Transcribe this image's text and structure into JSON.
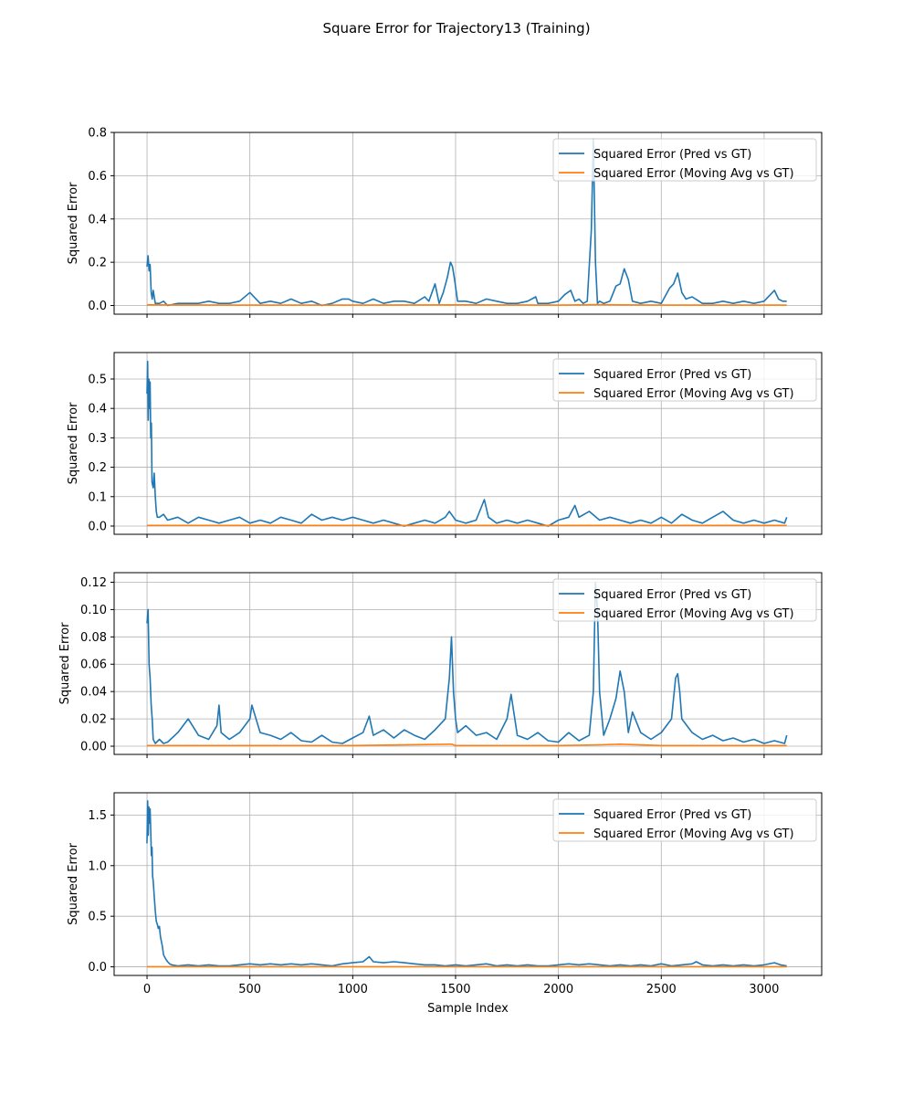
{
  "figure": {
    "title": "Square Error for Trajectory13 (Training)"
  },
  "colors": {
    "series_pred": "#1f77b4",
    "series_movavg": "#ff7f0e",
    "grid": "#b0b0b0",
    "axis": "#000000",
    "background": "#ffffff"
  },
  "chart_data": [
    {
      "type": "line",
      "title": "",
      "xlabel": "",
      "ylabel": "Squared Error",
      "xlim": [
        -160,
        3280
      ],
      "ylim": [
        -0.04,
        0.8
      ],
      "xticks": [
        0,
        500,
        1000,
        1500,
        2000,
        2500,
        3000
      ],
      "xtick_labels_visible": false,
      "yticks": [
        0.0,
        0.2,
        0.4,
        0.6,
        0.8
      ],
      "ytick_labels": [
        "0.0",
        "0.2",
        "0.4",
        "0.6",
        "0.8"
      ],
      "grid": true,
      "legend": "top-right",
      "series": [
        {
          "name": "Squared Error (Pred vs GT)",
          "x": [
            0,
            5,
            10,
            15,
            20,
            25,
            30,
            40,
            60,
            80,
            100,
            150,
            200,
            250,
            300,
            350,
            400,
            450,
            500,
            550,
            600,
            650,
            700,
            750,
            800,
            850,
            900,
            950,
            980,
            1000,
            1050,
            1100,
            1150,
            1200,
            1250,
            1300,
            1350,
            1370,
            1400,
            1420,
            1440,
            1460,
            1475,
            1485,
            1495,
            1510,
            1550,
            1600,
            1650,
            1700,
            1750,
            1800,
            1850,
            1890,
            1900,
            1950,
            2000,
            2030,
            2060,
            2080,
            2100,
            2120,
            2140,
            2160,
            2170,
            2180,
            2190,
            2200,
            2220,
            2250,
            2280,
            2300,
            2320,
            2340,
            2360,
            2400,
            2450,
            2500,
            2540,
            2560,
            2580,
            2600,
            2620,
            2650,
            2700,
            2750,
            2800,
            2850,
            2900,
            2950,
            3000,
            3050,
            3070,
            3090,
            3110
          ],
          "y": [
            0.18,
            0.23,
            0.16,
            0.19,
            0.06,
            0.03,
            0.07,
            0.01,
            0.01,
            0.02,
            0.0,
            0.01,
            0.01,
            0.01,
            0.02,
            0.01,
            0.01,
            0.02,
            0.06,
            0.01,
            0.02,
            0.01,
            0.03,
            0.01,
            0.02,
            0.0,
            0.01,
            0.03,
            0.03,
            0.02,
            0.01,
            0.03,
            0.01,
            0.02,
            0.02,
            0.01,
            0.04,
            0.02,
            0.1,
            0.01,
            0.06,
            0.13,
            0.2,
            0.18,
            0.12,
            0.02,
            0.02,
            0.01,
            0.03,
            0.02,
            0.01,
            0.01,
            0.02,
            0.04,
            0.01,
            0.01,
            0.02,
            0.05,
            0.07,
            0.02,
            0.03,
            0.01,
            0.02,
            0.35,
            0.77,
            0.2,
            0.01,
            0.02,
            0.01,
            0.02,
            0.09,
            0.1,
            0.17,
            0.12,
            0.02,
            0.01,
            0.02,
            0.01,
            0.08,
            0.1,
            0.15,
            0.06,
            0.03,
            0.04,
            0.01,
            0.01,
            0.02,
            0.01,
            0.02,
            0.01,
            0.02,
            0.07,
            0.03,
            0.02,
            0.02
          ]
        },
        {
          "name": "Squared Error (Moving Avg vs GT)",
          "x": [
            0,
            500,
            1000,
            1500,
            2000,
            2200,
            2300,
            2500,
            3000,
            3110
          ],
          "y": [
            0.003,
            0.002,
            0.002,
            0.003,
            0.002,
            0.004,
            0.003,
            0.002,
            0.002,
            0.002
          ]
        }
      ]
    },
    {
      "type": "line",
      "title": "",
      "xlabel": "",
      "ylabel": "Squared Error",
      "xlim": [
        -160,
        3280
      ],
      "ylim": [
        -0.028,
        0.59
      ],
      "xticks": [
        0,
        500,
        1000,
        1500,
        2000,
        2500,
        3000
      ],
      "xtick_labels_visible": false,
      "yticks": [
        0.0,
        0.1,
        0.2,
        0.3,
        0.4,
        0.5
      ],
      "ytick_labels": [
        "0.0",
        "0.1",
        "0.2",
        "0.3",
        "0.4",
        "0.5"
      ],
      "grid": true,
      "legend": "top-right",
      "series": [
        {
          "name": "Squared Error (Pred vs GT)",
          "x": [
            0,
            3,
            6,
            9,
            12,
            15,
            18,
            21,
            24,
            30,
            35,
            40,
            45,
            50,
            60,
            80,
            100,
            150,
            200,
            250,
            300,
            350,
            400,
            450,
            500,
            550,
            600,
            650,
            700,
            750,
            800,
            850,
            900,
            950,
            1000,
            1050,
            1100,
            1150,
            1200,
            1250,
            1300,
            1350,
            1400,
            1450,
            1470,
            1500,
            1550,
            1600,
            1640,
            1660,
            1700,
            1750,
            1800,
            1850,
            1900,
            1950,
            2000,
            2050,
            2080,
            2100,
            2150,
            2200,
            2250,
            2300,
            2350,
            2400,
            2450,
            2500,
            2550,
            2600,
            2650,
            2700,
            2750,
            2800,
            2850,
            2900,
            2950,
            3000,
            3050,
            3100,
            3110
          ],
          "y": [
            0.45,
            0.56,
            0.36,
            0.5,
            0.4,
            0.49,
            0.3,
            0.35,
            0.15,
            0.13,
            0.18,
            0.1,
            0.05,
            0.03,
            0.03,
            0.04,
            0.02,
            0.03,
            0.01,
            0.03,
            0.02,
            0.01,
            0.02,
            0.03,
            0.01,
            0.02,
            0.01,
            0.03,
            0.02,
            0.01,
            0.04,
            0.02,
            0.03,
            0.02,
            0.03,
            0.02,
            0.01,
            0.02,
            0.01,
            0.0,
            0.01,
            0.02,
            0.01,
            0.03,
            0.05,
            0.02,
            0.01,
            0.02,
            0.09,
            0.03,
            0.01,
            0.02,
            0.01,
            0.02,
            0.01,
            0.0,
            0.02,
            0.03,
            0.07,
            0.03,
            0.05,
            0.02,
            0.03,
            0.02,
            0.01,
            0.02,
            0.01,
            0.03,
            0.01,
            0.04,
            0.02,
            0.01,
            0.03,
            0.05,
            0.02,
            0.01,
            0.02,
            0.01,
            0.02,
            0.01,
            0.03
          ]
        },
        {
          "name": "Squared Error (Moving Avg vs GT)",
          "x": [
            0,
            500,
            1000,
            1500,
            2000,
            2500,
            3000,
            3110
          ],
          "y": [
            0.002,
            0.002,
            0.002,
            0.002,
            0.002,
            0.002,
            0.002,
            0.002
          ]
        }
      ]
    },
    {
      "type": "line",
      "title": "",
      "xlabel": "",
      "ylabel": "Squared Error",
      "xlim": [
        -160,
        3280
      ],
      "ylim": [
        -0.006,
        0.127
      ],
      "xticks": [
        0,
        500,
        1000,
        1500,
        2000,
        2500,
        3000
      ],
      "xtick_labels_visible": false,
      "yticks": [
        0.0,
        0.02,
        0.04,
        0.06,
        0.08,
        0.1,
        0.12
      ],
      "ytick_labels": [
        "0.00",
        "0.02",
        "0.04",
        "0.06",
        "0.08",
        "0.10",
        "0.12"
      ],
      "grid": true,
      "legend": "top-right",
      "series": [
        {
          "name": "Squared Error (Pred vs GT)",
          "x": [
            0,
            5,
            10,
            15,
            20,
            25,
            30,
            40,
            60,
            80,
            100,
            150,
            200,
            250,
            300,
            340,
            350,
            360,
            400,
            450,
            500,
            510,
            550,
            600,
            650,
            700,
            750,
            800,
            850,
            900,
            950,
            1000,
            1050,
            1080,
            1100,
            1150,
            1200,
            1250,
            1300,
            1350,
            1400,
            1450,
            1470,
            1480,
            1490,
            1500,
            1510,
            1550,
            1600,
            1650,
            1700,
            1750,
            1770,
            1800,
            1850,
            1900,
            1950,
            2000,
            2050,
            2100,
            2150,
            2170,
            2180,
            2190,
            2200,
            2220,
            2250,
            2280,
            2300,
            2320,
            2340,
            2360,
            2400,
            2450,
            2500,
            2550,
            2570,
            2580,
            2590,
            2600,
            2650,
            2700,
            2750,
            2800,
            2850,
            2900,
            2950,
            3000,
            3050,
            3100,
            3110
          ],
          "y": [
            0.09,
            0.1,
            0.06,
            0.05,
            0.03,
            0.02,
            0.005,
            0.002,
            0.005,
            0.002,
            0.003,
            0.01,
            0.02,
            0.008,
            0.005,
            0.015,
            0.03,
            0.01,
            0.005,
            0.01,
            0.02,
            0.03,
            0.01,
            0.008,
            0.005,
            0.01,
            0.004,
            0.003,
            0.008,
            0.003,
            0.002,
            0.006,
            0.01,
            0.022,
            0.008,
            0.012,
            0.006,
            0.012,
            0.008,
            0.005,
            0.012,
            0.02,
            0.05,
            0.08,
            0.04,
            0.02,
            0.01,
            0.015,
            0.008,
            0.01,
            0.005,
            0.02,
            0.038,
            0.008,
            0.005,
            0.01,
            0.004,
            0.003,
            0.01,
            0.004,
            0.008,
            0.04,
            0.12,
            0.1,
            0.04,
            0.008,
            0.02,
            0.035,
            0.055,
            0.04,
            0.01,
            0.025,
            0.01,
            0.005,
            0.01,
            0.02,
            0.05,
            0.053,
            0.04,
            0.02,
            0.01,
            0.005,
            0.008,
            0.004,
            0.006,
            0.003,
            0.005,
            0.002,
            0.004,
            0.002,
            0.008
          ]
        },
        {
          "name": "Squared Error (Moving Avg vs GT)",
          "x": [
            0,
            500,
            1000,
            1480,
            1500,
            2000,
            2200,
            2300,
            2500,
            3000,
            3110
          ],
          "y": [
            0.0005,
            0.0005,
            0.0005,
            0.0015,
            0.0005,
            0.0005,
            0.001,
            0.0015,
            0.0005,
            0.0005,
            0.0005
          ]
        }
      ]
    },
    {
      "type": "line",
      "title": "",
      "xlabel": "Sample Index",
      "ylabel": "Squared Error",
      "xlim": [
        -160,
        3280
      ],
      "ylim": [
        -0.085,
        1.72
      ],
      "xticks": [
        0,
        500,
        1000,
        1500,
        2000,
        2500,
        3000
      ],
      "xtick_labels": [
        "0",
        "500",
        "1000",
        "1500",
        "2000",
        "2500",
        "3000"
      ],
      "xtick_labels_visible": true,
      "yticks": [
        0.0,
        0.5,
        1.0,
        1.5
      ],
      "ytick_labels": [
        "0.0",
        "0.5",
        "1.0",
        "1.5"
      ],
      "grid": true,
      "legend": "top-right",
      "series": [
        {
          "name": "Squared Error (Pred vs GT)",
          "x": [
            0,
            3,
            6,
            9,
            12,
            15,
            18,
            21,
            24,
            27,
            30,
            35,
            40,
            45,
            50,
            55,
            60,
            65,
            70,
            75,
            80,
            90,
            100,
            110,
            120,
            150,
            200,
            250,
            300,
            350,
            400,
            450,
            500,
            550,
            600,
            650,
            700,
            750,
            800,
            850,
            900,
            950,
            1000,
            1050,
            1080,
            1100,
            1150,
            1200,
            1250,
            1300,
            1350,
            1400,
            1450,
            1500,
            1550,
            1600,
            1650,
            1700,
            1750,
            1800,
            1850,
            1900,
            1950,
            2000,
            2050,
            2100,
            2150,
            2200,
            2250,
            2300,
            2350,
            2400,
            2450,
            2500,
            2550,
            2600,
            2650,
            2670,
            2700,
            2750,
            2800,
            2850,
            2900,
            2950,
            3000,
            3050,
            3080,
            3110
          ],
          "y": [
            1.22,
            1.64,
            1.3,
            1.58,
            1.42,
            1.56,
            1.35,
            1.1,
            1.18,
            0.9,
            0.85,
            0.7,
            0.55,
            0.45,
            0.42,
            0.38,
            0.4,
            0.3,
            0.25,
            0.2,
            0.12,
            0.08,
            0.05,
            0.03,
            0.02,
            0.01,
            0.02,
            0.01,
            0.02,
            0.01,
            0.01,
            0.02,
            0.03,
            0.02,
            0.03,
            0.02,
            0.03,
            0.02,
            0.03,
            0.02,
            0.01,
            0.03,
            0.04,
            0.05,
            0.1,
            0.05,
            0.04,
            0.05,
            0.04,
            0.03,
            0.02,
            0.02,
            0.01,
            0.02,
            0.01,
            0.02,
            0.03,
            0.01,
            0.02,
            0.01,
            0.02,
            0.01,
            0.01,
            0.02,
            0.03,
            0.02,
            0.03,
            0.02,
            0.01,
            0.02,
            0.01,
            0.02,
            0.01,
            0.03,
            0.01,
            0.02,
            0.03,
            0.05,
            0.02,
            0.01,
            0.02,
            0.01,
            0.02,
            0.01,
            0.02,
            0.04,
            0.02,
            0.01
          ]
        },
        {
          "name": "Squared Error (Moving Avg vs GT)",
          "x": [
            0,
            500,
            1000,
            1500,
            2000,
            2500,
            3000,
            3110
          ],
          "y": [
            0.002,
            0.002,
            0.002,
            0.002,
            0.002,
            0.002,
            0.002,
            0.002
          ]
        }
      ]
    }
  ]
}
